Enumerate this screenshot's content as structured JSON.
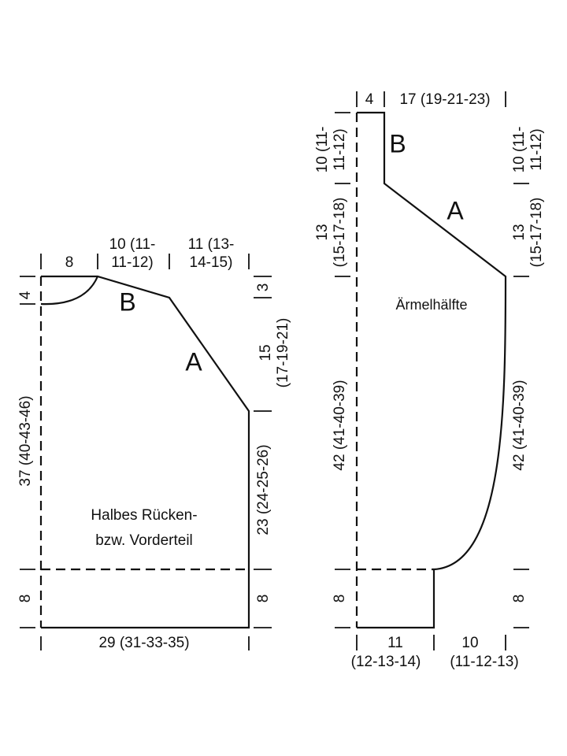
{
  "body": {
    "name": [
      "Halbes Rücken-",
      "bzw. Vorderteil"
    ],
    "top": [
      "8",
      "10 (11-",
      "11-12)",
      "11 (13-",
      "14-15)"
    ],
    "left": [
      "4",
      "37 (40-43-46)",
      "8"
    ],
    "right": [
      "3",
      "15",
      "(17-19-21)",
      "23 (24-25-26)",
      "8"
    ],
    "bottom": "29 (31-33-35)",
    "sections": [
      "B",
      "A"
    ]
  },
  "sleeve": {
    "name": "Ärmelhälfte",
    "top": [
      "4",
      "17 (19-21-23)"
    ],
    "left": [
      "10 (11-",
      "11-12)",
      "13",
      "(15-17-18)",
      "42 (41-40-39)",
      "8"
    ],
    "right": [
      "10 (11-",
      "11-12)",
      "13",
      "(15-17-18)",
      "42 (41-40-39)",
      "8"
    ],
    "bottom": [
      "11",
      "(12-13-14)",
      "10",
      "(11-12-13)"
    ],
    "sections": [
      "B",
      "A"
    ]
  }
}
